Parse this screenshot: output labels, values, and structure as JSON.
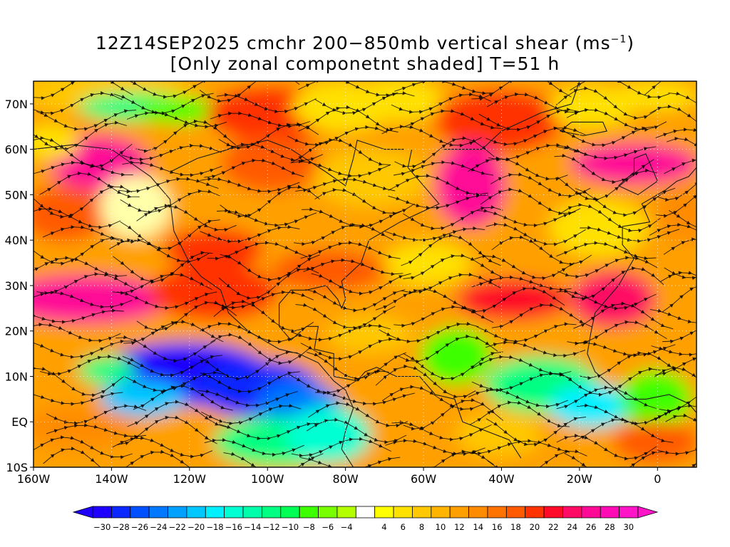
{
  "title": {
    "line1_prefix": "12Z14SEP2025 cmchr 200−850mb vertical shear (ms",
    "line1_sup": "−1",
    "line1_suffix": ")",
    "line2": "[Only zonal componetnt shaded] T=51 h"
  },
  "map": {
    "lon_range": [
      -160,
      10
    ],
    "lat_range": [
      -10,
      75
    ],
    "lat_labels": [
      {
        "lat": 70,
        "label": "70N"
      },
      {
        "lat": 60,
        "label": "60N"
      },
      {
        "lat": 50,
        "label": "50N"
      },
      {
        "lat": 40,
        "label": "40N"
      },
      {
        "lat": 30,
        "label": "30N"
      },
      {
        "lat": 20,
        "label": "20N"
      },
      {
        "lat": 10,
        "label": "10N"
      },
      {
        "lat": 0,
        "label": "EQ"
      },
      {
        "lat": -10,
        "label": "10S"
      }
    ],
    "lon_labels": [
      {
        "lon": -160,
        "label": "160W"
      },
      {
        "lon": -140,
        "label": "140W"
      },
      {
        "lon": -120,
        "label": "120W"
      },
      {
        "lon": -100,
        "label": "100W"
      },
      {
        "lon": -80,
        "label": "80W"
      },
      {
        "lon": -60,
        "label": "60W"
      },
      {
        "lon": -40,
        "label": "40W"
      },
      {
        "lon": -20,
        "label": "20W"
      },
      {
        "lon": 0,
        "label": "0"
      }
    ]
  },
  "colorbar": {
    "labels": [
      "−30",
      "−28",
      "−26",
      "−24",
      "−22",
      "−20",
      "−18",
      "−16",
      "−14",
      "−12",
      "−10",
      "−8",
      "−6",
      "−4",
      "4",
      "6",
      "8",
      "10",
      "12",
      "14",
      "16",
      "18",
      "20",
      "22",
      "24",
      "26",
      "28",
      "30"
    ],
    "colors": [
      "#1f00ff",
      "#0a28ff",
      "#0050ff",
      "#0078ff",
      "#00a0ff",
      "#00c8ff",
      "#00f0ff",
      "#00ffd2",
      "#00ffaa",
      "#00ff82",
      "#00ff55",
      "#3cff00",
      "#78ff00",
      "#b4ff00",
      "#ffffff",
      "#ffff00",
      "#ffe100",
      "#ffc800",
      "#ffb400",
      "#ffa000",
      "#ff8c00",
      "#ff7300",
      "#ff5a00",
      "#ff3200",
      "#ff0a28",
      "#ff0a64",
      "#ff0a96",
      "#ff0ab4",
      "#ff14c8"
    ]
  }
}
